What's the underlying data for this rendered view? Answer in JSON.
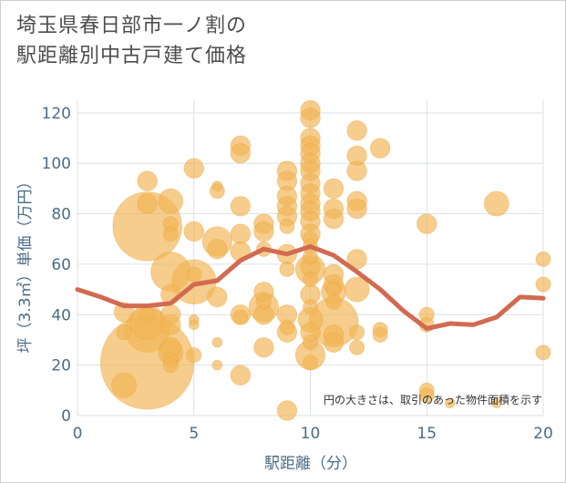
{
  "chart_data": {
    "type": "scatter",
    "title_lines": [
      "埼玉県春日部市一ノ割の",
      "駅距離別中古戸建て価格"
    ],
    "xlabel": "駅距離（分）",
    "ylabel": "坪（3.3㎡）単価（万円）",
    "xlim": [
      0,
      20
    ],
    "ylim": [
      0,
      125
    ],
    "xticks": [
      "0",
      "5",
      "10",
      "15",
      "20"
    ],
    "yticks": [
      "0",
      "20",
      "40",
      "60",
      "80",
      "100",
      "120"
    ],
    "note": "円の大きさは、取引のあった物件面積を示す",
    "colors": {
      "bubble": "#f1b655",
      "bubble_edge": "#e4a23a",
      "line": "#d26a52",
      "grid": "#d9e1e8",
      "axis_text": "#4c6c86"
    },
    "average_line": {
      "x": [
        0,
        1,
        2,
        3,
        4,
        5,
        6,
        7,
        8,
        9,
        10,
        11,
        12,
        13,
        14,
        15,
        16,
        17,
        18,
        19,
        20
      ],
      "y": [
        50,
        47,
        43.5,
        43.5,
        44.5,
        52,
        53.5,
        61.5,
        66,
        64,
        67,
        63.5,
        57,
        50,
        41.5,
        34.5,
        36.5,
        36,
        39,
        47,
        46.5
      ]
    },
    "bubbles": [
      {
        "x": 2,
        "y": 41,
        "s": 4
      },
      {
        "x": 2,
        "y": 33,
        "s": 3
      },
      {
        "x": 2,
        "y": 12,
        "s": 5
      },
      {
        "x": 3,
        "y": 93,
        "s": 4
      },
      {
        "x": 3,
        "y": 84,
        "s": 4
      },
      {
        "x": 3,
        "y": 75,
        "s": 14
      },
      {
        "x": 3,
        "y": 40,
        "s": 3
      },
      {
        "x": 3,
        "y": 37,
        "s": 7
      },
      {
        "x": 3,
        "y": 34,
        "s": 9
      },
      {
        "x": 3,
        "y": 21,
        "s": 19
      },
      {
        "x": 4,
        "y": 85,
        "s": 5
      },
      {
        "x": 4,
        "y": 76,
        "s": 3
      },
      {
        "x": 4,
        "y": 72,
        "s": 3
      },
      {
        "x": 4,
        "y": 57,
        "s": 8
      },
      {
        "x": 4,
        "y": 48,
        "s": 4
      },
      {
        "x": 4,
        "y": 40,
        "s": 4
      },
      {
        "x": 4,
        "y": 36,
        "s": 4
      },
      {
        "x": 4,
        "y": 27,
        "s": 4
      },
      {
        "x": 4,
        "y": 25,
        "s": 5
      },
      {
        "x": 4,
        "y": 22,
        "s": 3
      },
      {
        "x": 4,
        "y": 20,
        "s": 3
      },
      {
        "x": 5,
        "y": 98,
        "s": 4
      },
      {
        "x": 5,
        "y": 73,
        "s": 4
      },
      {
        "x": 5,
        "y": 56,
        "s": 3
      },
      {
        "x": 5,
        "y": 53,
        "s": 9
      },
      {
        "x": 5,
        "y": 38,
        "s": 2
      },
      {
        "x": 5,
        "y": 36,
        "s": 2
      },
      {
        "x": 5,
        "y": 24,
        "s": 3
      },
      {
        "x": 6,
        "y": 91,
        "s": 2
      },
      {
        "x": 6,
        "y": 89,
        "s": 3
      },
      {
        "x": 6,
        "y": 69,
        "s": 6
      },
      {
        "x": 6,
        "y": 66,
        "s": 4
      },
      {
        "x": 6,
        "y": 47,
        "s": 4
      },
      {
        "x": 6,
        "y": 29,
        "s": 2
      },
      {
        "x": 6,
        "y": 20,
        "s": 2
      },
      {
        "x": 7,
        "y": 107,
        "s": 4
      },
      {
        "x": 7,
        "y": 104,
        "s": 4
      },
      {
        "x": 7,
        "y": 83,
        "s": 4
      },
      {
        "x": 7,
        "y": 72,
        "s": 4
      },
      {
        "x": 7,
        "y": 65,
        "s": 4
      },
      {
        "x": 7,
        "y": 40,
        "s": 4
      },
      {
        "x": 7,
        "y": 39,
        "s": 3
      },
      {
        "x": 7,
        "y": 16,
        "s": 4
      },
      {
        "x": 8,
        "y": 76,
        "s": 4
      },
      {
        "x": 8,
        "y": 73,
        "s": 4
      },
      {
        "x": 8,
        "y": 66,
        "s": 3
      },
      {
        "x": 8,
        "y": 49,
        "s": 4
      },
      {
        "x": 8,
        "y": 45,
        "s": 3
      },
      {
        "x": 8,
        "y": 43,
        "s": 6
      },
      {
        "x": 8,
        "y": 40,
        "s": 4
      },
      {
        "x": 8,
        "y": 27,
        "s": 4
      },
      {
        "x": 9,
        "y": 97,
        "s": 4
      },
      {
        "x": 9,
        "y": 93,
        "s": 4
      },
      {
        "x": 9,
        "y": 87,
        "s": 4
      },
      {
        "x": 9,
        "y": 83,
        "s": 4
      },
      {
        "x": 9,
        "y": 79,
        "s": 4
      },
      {
        "x": 9,
        "y": 75,
        "s": 3
      },
      {
        "x": 9,
        "y": 64,
        "s": 4
      },
      {
        "x": 9,
        "y": 58,
        "s": 3
      },
      {
        "x": 9,
        "y": 40,
        "s": 4
      },
      {
        "x": 9,
        "y": 35,
        "s": 3
      },
      {
        "x": 9,
        "y": 33,
        "s": 4
      },
      {
        "x": 9,
        "y": 2,
        "s": 4
      },
      {
        "x": 10,
        "y": 121,
        "s": 4
      },
      {
        "x": 10,
        "y": 118,
        "s": 4
      },
      {
        "x": 10,
        "y": 110,
        "s": 4
      },
      {
        "x": 10,
        "y": 107,
        "s": 4
      },
      {
        "x": 10,
        "y": 104,
        "s": 4
      },
      {
        "x": 10,
        "y": 100,
        "s": 4
      },
      {
        "x": 10,
        "y": 97,
        "s": 4
      },
      {
        "x": 10,
        "y": 92,
        "s": 4
      },
      {
        "x": 10,
        "y": 88,
        "s": 4
      },
      {
        "x": 10,
        "y": 84,
        "s": 4
      },
      {
        "x": 10,
        "y": 81,
        "s": 4
      },
      {
        "x": 10,
        "y": 77,
        "s": 4
      },
      {
        "x": 10,
        "y": 72,
        "s": 4
      },
      {
        "x": 10,
        "y": 70,
        "s": 3
      },
      {
        "x": 10,
        "y": 67,
        "s": 3
      },
      {
        "x": 10,
        "y": 63,
        "s": 3
      },
      {
        "x": 10,
        "y": 59,
        "s": 4
      },
      {
        "x": 10,
        "y": 58,
        "s": 6
      },
      {
        "x": 10,
        "y": 54,
        "s": 3
      },
      {
        "x": 10,
        "y": 48,
        "s": 4
      },
      {
        "x": 10,
        "y": 43,
        "s": 3
      },
      {
        "x": 10,
        "y": 38,
        "s": 5
      },
      {
        "x": 10,
        "y": 33,
        "s": 4
      },
      {
        "x": 10,
        "y": 29,
        "s": 3
      },
      {
        "x": 10,
        "y": 24,
        "s": 6
      },
      {
        "x": 10,
        "y": 21,
        "s": 3
      },
      {
        "x": 11,
        "y": 90,
        "s": 4
      },
      {
        "x": 11,
        "y": 82,
        "s": 4
      },
      {
        "x": 11,
        "y": 78,
        "s": 4
      },
      {
        "x": 11,
        "y": 56,
        "s": 4
      },
      {
        "x": 11,
        "y": 52,
        "s": 4
      },
      {
        "x": 11,
        "y": 50,
        "s": 3
      },
      {
        "x": 11,
        "y": 49,
        "s": 5
      },
      {
        "x": 11,
        "y": 45,
        "s": 3
      },
      {
        "x": 11,
        "y": 37,
        "s": 10
      },
      {
        "x": 11,
        "y": 32,
        "s": 4
      },
      {
        "x": 11,
        "y": 29,
        "s": 4
      },
      {
        "x": 12,
        "y": 113,
        "s": 4
      },
      {
        "x": 12,
        "y": 103,
        "s": 4
      },
      {
        "x": 12,
        "y": 97,
        "s": 4
      },
      {
        "x": 12,
        "y": 85,
        "s": 4
      },
      {
        "x": 12,
        "y": 82,
        "s": 4
      },
      {
        "x": 12,
        "y": 62,
        "s": 4
      },
      {
        "x": 12,
        "y": 50,
        "s": 5
      },
      {
        "x": 12,
        "y": 33,
        "s": 3
      },
      {
        "x": 12,
        "y": 27,
        "s": 3
      },
      {
        "x": 13,
        "y": 106,
        "s": 4
      },
      {
        "x": 13,
        "y": 34,
        "s": 3
      },
      {
        "x": 13,
        "y": 32,
        "s": 3
      },
      {
        "x": 15,
        "y": 76,
        "s": 4
      },
      {
        "x": 15,
        "y": 40,
        "s": 3
      },
      {
        "x": 15,
        "y": 36,
        "s": 3
      },
      {
        "x": 15,
        "y": 10,
        "s": 3
      },
      {
        "x": 15,
        "y": 8,
        "s": 3
      },
      {
        "x": 16,
        "y": 5,
        "s": 2
      },
      {
        "x": 18,
        "y": 84,
        "s": 5
      },
      {
        "x": 18,
        "y": 5,
        "s": 2
      },
      {
        "x": 20,
        "y": 62,
        "s": 3
      },
      {
        "x": 20,
        "y": 52,
        "s": 3
      },
      {
        "x": 20,
        "y": 25,
        "s": 3
      }
    ]
  }
}
